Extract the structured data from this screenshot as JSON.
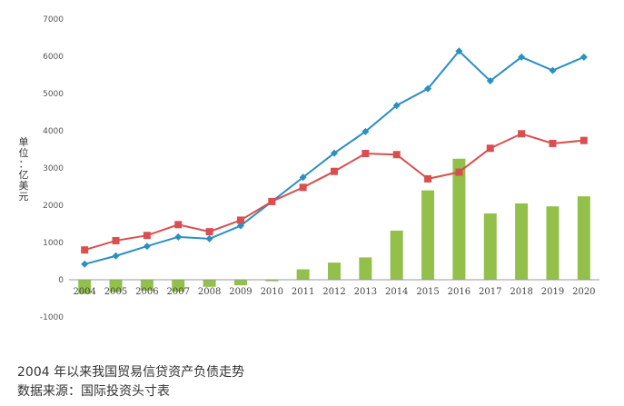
{
  "chart_data": {
    "type": "bar+line",
    "categories": [
      "2004",
      "2005",
      "2006",
      "2007",
      "2008",
      "2009",
      "2010",
      "2011",
      "2012",
      "2013",
      "2014",
      "2015",
      "2016",
      "2017",
      "2018",
      "2019",
      "2020"
    ],
    "ylabel": "单位：亿美元",
    "ylim": [
      -1000,
      7000
    ],
    "yticks": [
      "-1000",
      "0",
      "1000",
      "2000",
      "3000",
      "4000",
      "5000",
      "6000",
      "7000"
    ],
    "grid": false,
    "series": [
      {
        "kind": "bar",
        "color": "#92c04a",
        "values": [
          -380,
          -330,
          -290,
          -320,
          -190,
          -150,
          -40,
          280,
          460,
          600,
          1320,
          2400,
          3250,
          1780,
          2050,
          1970,
          2240
        ]
      },
      {
        "kind": "line",
        "marker": "diamond",
        "color": "#2a8fc2",
        "values": [
          420,
          640,
          900,
          1150,
          1100,
          1450,
          2100,
          2750,
          3400,
          3980,
          4680,
          5130,
          6140,
          5340,
          5980,
          5620,
          5980
        ]
      },
      {
        "kind": "line",
        "marker": "square",
        "color": "#d94f4f",
        "values": [
          800,
          1050,
          1190,
          1480,
          1290,
          1600,
          2100,
          2480,
          2910,
          3390,
          3360,
          2710,
          2890,
          3530,
          3920,
          3660,
          3740
        ]
      }
    ]
  },
  "caption": {
    "title": "2004 年以来我国贸易信贷资产负债走势",
    "source": "数据来源：国际投资头寸表"
  }
}
